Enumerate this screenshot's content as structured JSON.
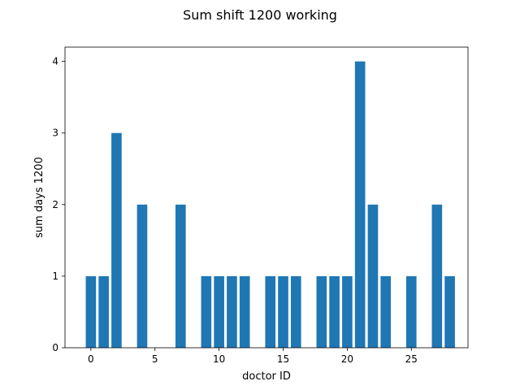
{
  "chart_data": {
    "type": "bar",
    "title": "Sum shift 1200 working",
    "xlabel": "doctor ID",
    "ylabel": "sum days 1200",
    "x": [
      0,
      1,
      2,
      3,
      4,
      5,
      6,
      7,
      8,
      9,
      10,
      11,
      12,
      13,
      14,
      15,
      16,
      17,
      18,
      19,
      20,
      21,
      22,
      23,
      24,
      25,
      26,
      27,
      28
    ],
    "values": [
      1,
      1,
      3,
      0,
      2,
      0,
      0,
      2,
      0,
      1,
      1,
      1,
      1,
      0,
      1,
      1,
      1,
      0,
      1,
      1,
      1,
      4,
      2,
      1,
      0,
      1,
      0,
      2,
      1
    ],
    "xlim": [
      -2.02,
      29.42
    ],
    "ylim": [
      0,
      4.2
    ],
    "xticks": [
      0,
      5,
      10,
      15,
      20,
      25
    ],
    "yticks": [
      0,
      1,
      2,
      3,
      4
    ],
    "bar_color": "#1f77b4",
    "grid": false,
    "legend": "none"
  }
}
